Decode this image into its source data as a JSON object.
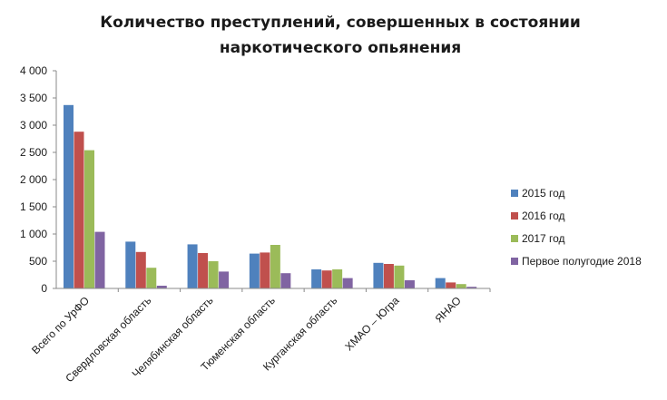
{
  "chart_data": {
    "type": "bar",
    "title": "Количество преступлений, совершенных в состоянии наркотического опьянения",
    "title_lines": [
      "Количество преступлений, совершенных в состоянии",
      "наркотического опьянения"
    ],
    "xlabel": "",
    "ylabel": "",
    "ylim": [
      0,
      4000
    ],
    "yticks": [
      0,
      500,
      1000,
      1500,
      2000,
      2500,
      3000,
      3500,
      4000
    ],
    "ytick_labels": [
      "0",
      "500",
      "1 000",
      "1 500",
      "2 000",
      "2 500",
      "3 000",
      "3 500",
      "4 000"
    ],
    "grid": false,
    "legend_position": "right",
    "categories": [
      "Всего по УрФО",
      "Свердловская область",
      "Челябинская область",
      "Тюменская область",
      "Курганская область",
      "ХМАО – Югра",
      "ЯНАО"
    ],
    "series": [
      {
        "name": "2015 год",
        "color": "#4f81bd",
        "values": [
          3370,
          860,
          810,
          640,
          350,
          470,
          190
        ]
      },
      {
        "name": "2016 год",
        "color": "#c0504d",
        "values": [
          2880,
          670,
          650,
          660,
          330,
          450,
          110
        ]
      },
      {
        "name": "2017 год",
        "color": "#9bbb59",
        "values": [
          2540,
          380,
          500,
          800,
          350,
          420,
          80
        ]
      },
      {
        "name": "Первое полугодие 2018",
        "color": "#8064a2",
        "values": [
          1040,
          50,
          310,
          280,
          190,
          150,
          30
        ]
      }
    ]
  }
}
